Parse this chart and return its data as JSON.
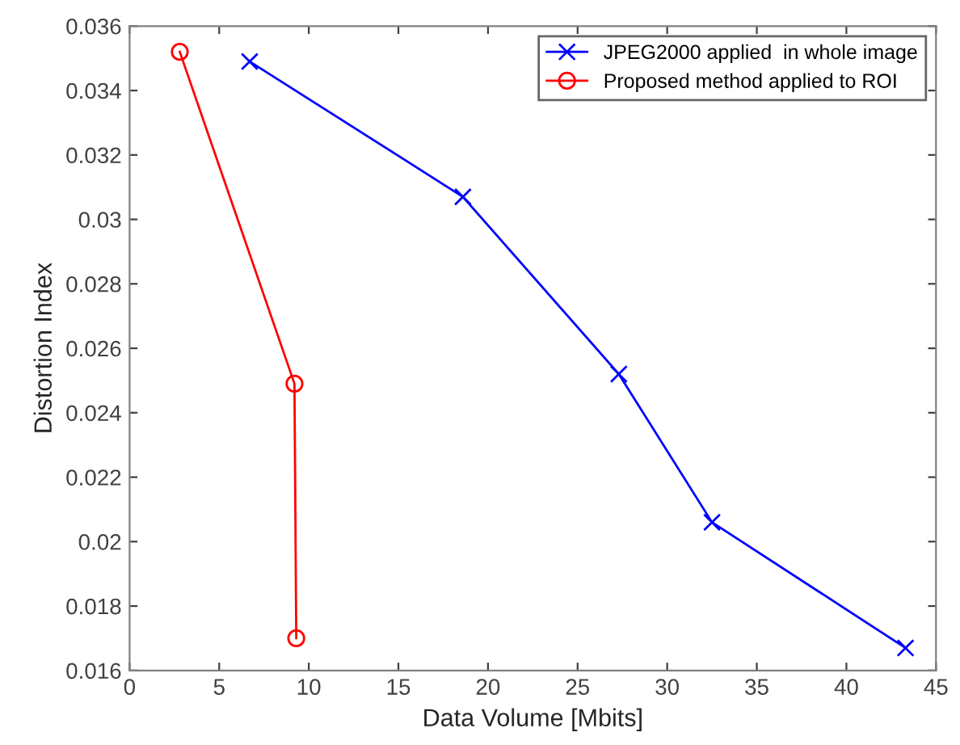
{
  "chart_data": {
    "type": "line",
    "xlabel": "Data Volume [Mbits]",
    "ylabel": "Distortion Index",
    "xlim": [
      0,
      45
    ],
    "xticks": [
      0,
      5,
      10,
      15,
      20,
      25,
      30,
      35,
      40,
      45
    ],
    "ylim": [
      0.016,
      0.036
    ],
    "yticks": [
      0.016,
      0.018,
      0.02,
      0.022,
      0.024,
      0.026,
      0.028,
      0.03,
      0.032,
      0.034,
      0.036
    ],
    "grid": false,
    "legend": "top right",
    "line_style": "solid",
    "series": [
      {
        "name": "JPEG2000 applied  in whole image",
        "color": "#0000ff",
        "marker": "cross",
        "x": [
          6.7,
          18.6,
          27.3,
          32.5,
          43.3
        ],
        "values": [
          0.0349,
          0.0307,
          0.0252,
          0.0206,
          0.0167
        ]
      },
      {
        "name": "Proposed method applied to ROI",
        "color": "#ff0000",
        "marker": "circle",
        "x": [
          2.8,
          9.2,
          9.3
        ],
        "values": [
          0.0352,
          0.0249,
          0.017
        ]
      }
    ]
  }
}
